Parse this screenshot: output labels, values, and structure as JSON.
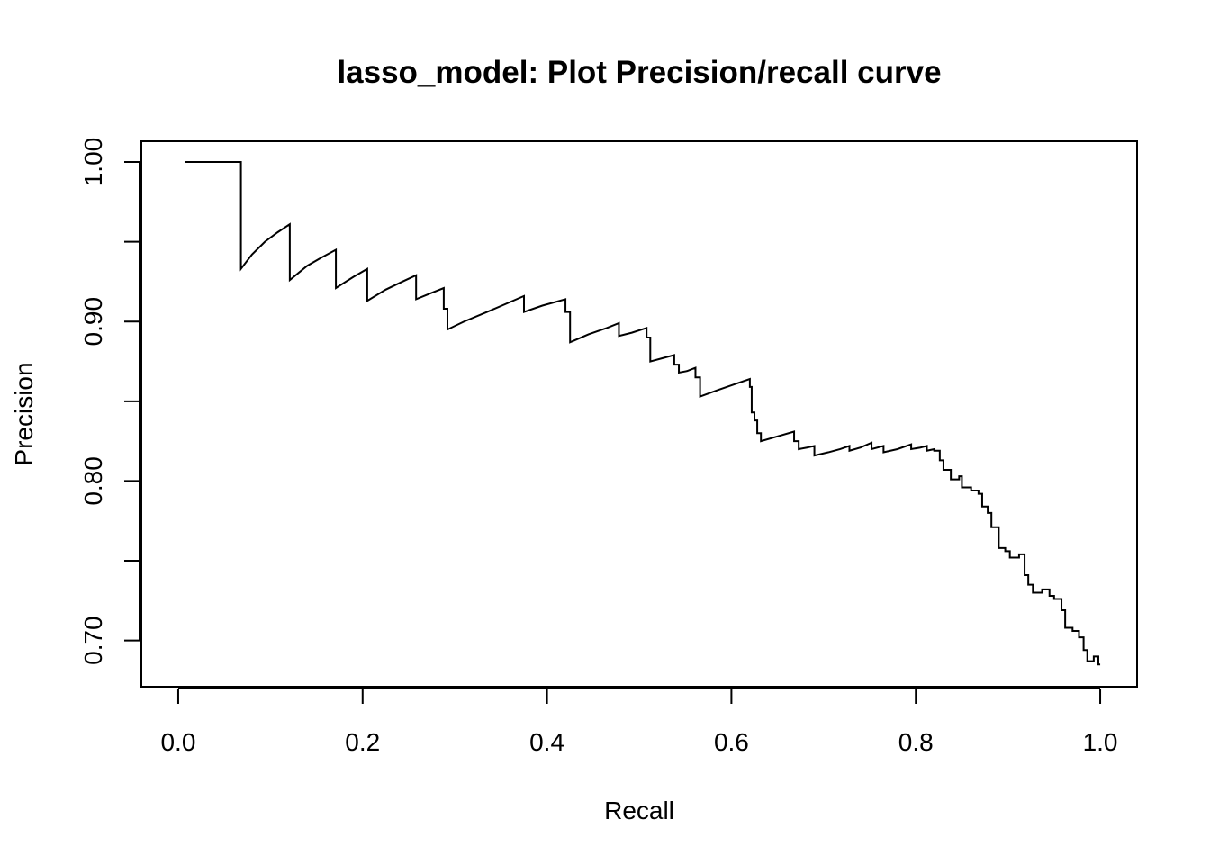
{
  "chart_data": {
    "type": "line",
    "title": "lasso_model: Plot Precision/recall curve",
    "xlabel": "Recall",
    "ylabel": "Precision",
    "xlim": [
      -0.04,
      1.04
    ],
    "ylim": [
      0.671,
      1.013
    ],
    "x_ticks": [
      0.0,
      0.2,
      0.4,
      0.6,
      0.8,
      1.0
    ],
    "x_tick_labels": [
      "0.0",
      "0.2",
      "0.4",
      "0.6",
      "0.8",
      "1.0"
    ],
    "y_ticks": [
      0.7,
      0.75,
      0.8,
      0.85,
      0.9,
      0.95,
      1.0
    ],
    "y_tick_labels": [
      "0.70",
      "",
      "0.80",
      "",
      "0.90",
      "",
      "1.00"
    ],
    "grid": false,
    "legend": "none",
    "line_color": "#000000",
    "series": [
      {
        "values": [
          [
            0.007,
            1.0
          ],
          [
            0.068,
            1.0
          ],
          [
            0.068,
            0.933
          ],
          [
            0.08,
            0.942
          ],
          [
            0.094,
            0.95
          ],
          [
            0.108,
            0.956
          ],
          [
            0.121,
            0.961
          ],
          [
            0.121,
            0.926
          ],
          [
            0.14,
            0.935
          ],
          [
            0.155,
            0.94
          ],
          [
            0.171,
            0.945
          ],
          [
            0.171,
            0.921
          ],
          [
            0.19,
            0.928
          ],
          [
            0.205,
            0.933
          ],
          [
            0.205,
            0.913
          ],
          [
            0.225,
            0.92
          ],
          [
            0.243,
            0.925
          ],
          [
            0.258,
            0.929
          ],
          [
            0.258,
            0.914
          ],
          [
            0.275,
            0.918
          ],
          [
            0.288,
            0.921
          ],
          [
            0.288,
            0.908
          ],
          [
            0.292,
            0.908
          ],
          [
            0.292,
            0.895
          ],
          [
            0.31,
            0.9
          ],
          [
            0.335,
            0.906
          ],
          [
            0.355,
            0.911
          ],
          [
            0.375,
            0.916
          ],
          [
            0.375,
            0.906
          ],
          [
            0.395,
            0.91
          ],
          [
            0.42,
            0.914
          ],
          [
            0.42,
            0.906
          ],
          [
            0.425,
            0.906
          ],
          [
            0.425,
            0.887
          ],
          [
            0.445,
            0.892
          ],
          [
            0.465,
            0.896
          ],
          [
            0.478,
            0.899
          ],
          [
            0.478,
            0.891
          ],
          [
            0.492,
            0.893
          ],
          [
            0.508,
            0.896
          ],
          [
            0.508,
            0.89
          ],
          [
            0.512,
            0.89
          ],
          [
            0.512,
            0.875
          ],
          [
            0.525,
            0.877
          ],
          [
            0.538,
            0.879
          ],
          [
            0.538,
            0.873
          ],
          [
            0.543,
            0.873
          ],
          [
            0.543,
            0.868
          ],
          [
            0.552,
            0.869
          ],
          [
            0.561,
            0.871
          ],
          [
            0.561,
            0.865
          ],
          [
            0.566,
            0.865
          ],
          [
            0.566,
            0.853
          ],
          [
            0.585,
            0.857
          ],
          [
            0.605,
            0.861
          ],
          [
            0.62,
            0.864
          ],
          [
            0.62,
            0.859
          ],
          [
            0.622,
            0.859
          ],
          [
            0.622,
            0.843
          ],
          [
            0.625,
            0.843
          ],
          [
            0.625,
            0.838
          ],
          [
            0.628,
            0.838
          ],
          [
            0.628,
            0.83
          ],
          [
            0.632,
            0.83
          ],
          [
            0.632,
            0.825
          ],
          [
            0.65,
            0.828
          ],
          [
            0.668,
            0.831
          ],
          [
            0.668,
            0.825
          ],
          [
            0.673,
            0.825
          ],
          [
            0.673,
            0.82
          ],
          [
            0.682,
            0.821
          ],
          [
            0.69,
            0.822
          ],
          [
            0.69,
            0.816
          ],
          [
            0.705,
            0.818
          ],
          [
            0.718,
            0.82
          ],
          [
            0.728,
            0.822
          ],
          [
            0.728,
            0.819
          ],
          [
            0.74,
            0.821
          ],
          [
            0.752,
            0.824
          ],
          [
            0.752,
            0.82
          ],
          [
            0.765,
            0.822
          ],
          [
            0.765,
            0.818
          ],
          [
            0.78,
            0.82
          ],
          [
            0.795,
            0.823
          ],
          [
            0.795,
            0.82
          ],
          [
            0.805,
            0.821
          ],
          [
            0.812,
            0.822
          ],
          [
            0.812,
            0.819
          ],
          [
            0.82,
            0.82
          ],
          [
            0.82,
            0.819
          ],
          [
            0.826,
            0.819
          ],
          [
            0.826,
            0.813
          ],
          [
            0.83,
            0.813
          ],
          [
            0.83,
            0.807
          ],
          [
            0.838,
            0.807
          ],
          [
            0.838,
            0.801
          ],
          [
            0.847,
            0.801
          ],
          [
            0.847,
            0.803
          ],
          [
            0.85,
            0.803
          ],
          [
            0.85,
            0.796
          ],
          [
            0.86,
            0.796
          ],
          [
            0.86,
            0.794
          ],
          [
            0.868,
            0.794
          ],
          [
            0.868,
            0.792
          ],
          [
            0.872,
            0.792
          ],
          [
            0.872,
            0.784
          ],
          [
            0.878,
            0.784
          ],
          [
            0.878,
            0.78
          ],
          [
            0.882,
            0.78
          ],
          [
            0.882,
            0.771
          ],
          [
            0.89,
            0.771
          ],
          [
            0.89,
            0.758
          ],
          [
            0.897,
            0.758
          ],
          [
            0.897,
            0.756
          ],
          [
            0.902,
            0.756
          ],
          [
            0.902,
            0.752
          ],
          [
            0.912,
            0.752
          ],
          [
            0.912,
            0.754
          ],
          [
            0.918,
            0.754
          ],
          [
            0.918,
            0.741
          ],
          [
            0.922,
            0.741
          ],
          [
            0.922,
            0.735
          ],
          [
            0.927,
            0.735
          ],
          [
            0.927,
            0.73
          ],
          [
            0.937,
            0.73
          ],
          [
            0.937,
            0.732
          ],
          [
            0.945,
            0.732
          ],
          [
            0.945,
            0.728
          ],
          [
            0.95,
            0.728
          ],
          [
            0.95,
            0.726
          ],
          [
            0.958,
            0.726
          ],
          [
            0.958,
            0.719
          ],
          [
            0.962,
            0.719
          ],
          [
            0.962,
            0.708
          ],
          [
            0.97,
            0.708
          ],
          [
            0.97,
            0.706
          ],
          [
            0.977,
            0.706
          ],
          [
            0.977,
            0.702
          ],
          [
            0.982,
            0.702
          ],
          [
            0.982,
            0.694
          ],
          [
            0.986,
            0.694
          ],
          [
            0.986,
            0.687
          ],
          [
            0.993,
            0.687
          ],
          [
            0.993,
            0.69
          ],
          [
            0.998,
            0.69
          ],
          [
            0.998,
            0.685
          ],
          [
            1.0,
            0.685
          ]
        ]
      }
    ]
  }
}
